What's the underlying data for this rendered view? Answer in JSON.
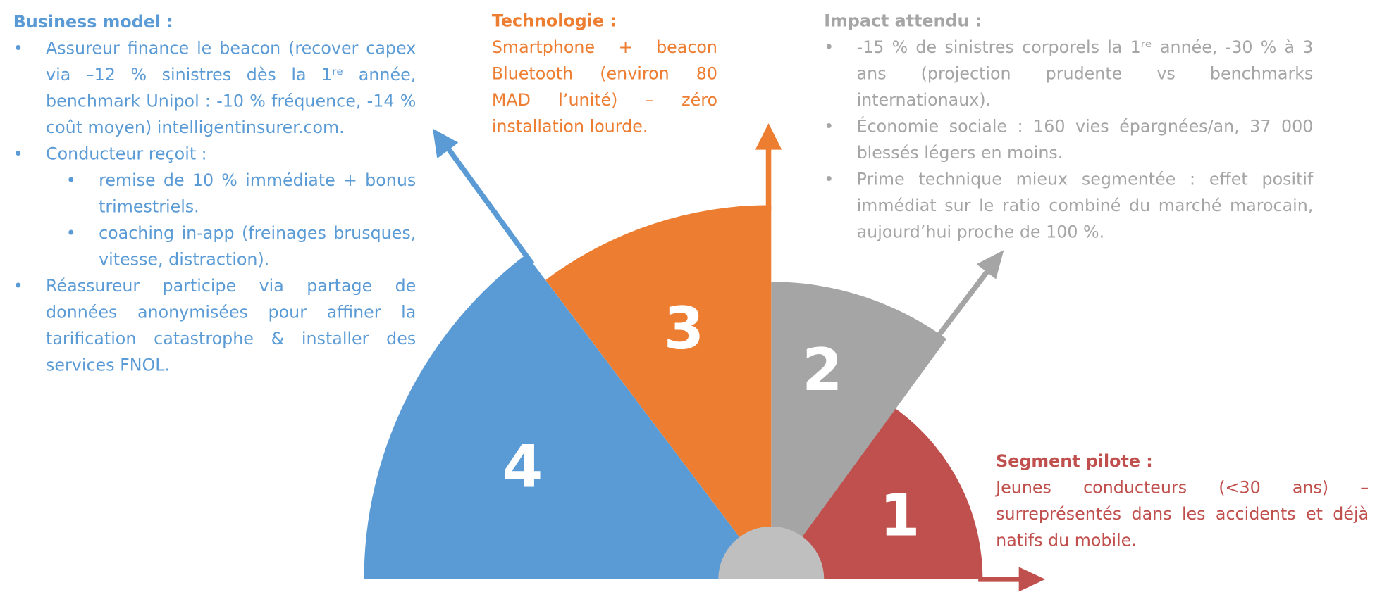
{
  "numbers": [
    "1",
    "2",
    "3",
    "4"
  ],
  "business_model": {
    "title": "Business model :",
    "items": [
      {
        "text": "Assureur finance le beacon (recover capex via –12 % sinistres dès la 1ʳᵉ année, benchmark Unipol : -10 % fréquence, -14 % coût moyen) intelligentinsurer.com."
      },
      {
        "text": "Conducteur reçoit :",
        "subitems": [
          "remise de 10 % immédiate + bonus trimestriels.",
          "coaching in-app (freinages brusques, vitesse, distraction)."
        ]
      },
      {
        "text": "Réassureur participe via partage de données anonymisées pour affiner la tarification catastrophe & installer des services FNOL."
      }
    ]
  },
  "technologie": {
    "title": "Technologie :",
    "text": "Smartphone + beacon Bluetooth (environ 80 MAD l’unité) – zéro installation lourde."
  },
  "impact": {
    "title": "Impact attendu :",
    "items": [
      "-15 % de sinistres corporels la 1ʳᵉ année, -30 % à 3 ans (projection prudente vs benchmarks internationaux).",
      "Économie sociale : 160 vies épargnées/an, 37 000 blessés légers en moins.",
      "Prime technique mieux segmentée : effet positif immédiat sur le ratio combiné du marché marocain, aujourd’hui proche de 100 %."
    ]
  },
  "segment": {
    "title": "Segment pilote :",
    "text": "Jeunes conducteurs (<30 ans) – surreprésentés dans les accidents et déjà natifs du mobile."
  }
}
